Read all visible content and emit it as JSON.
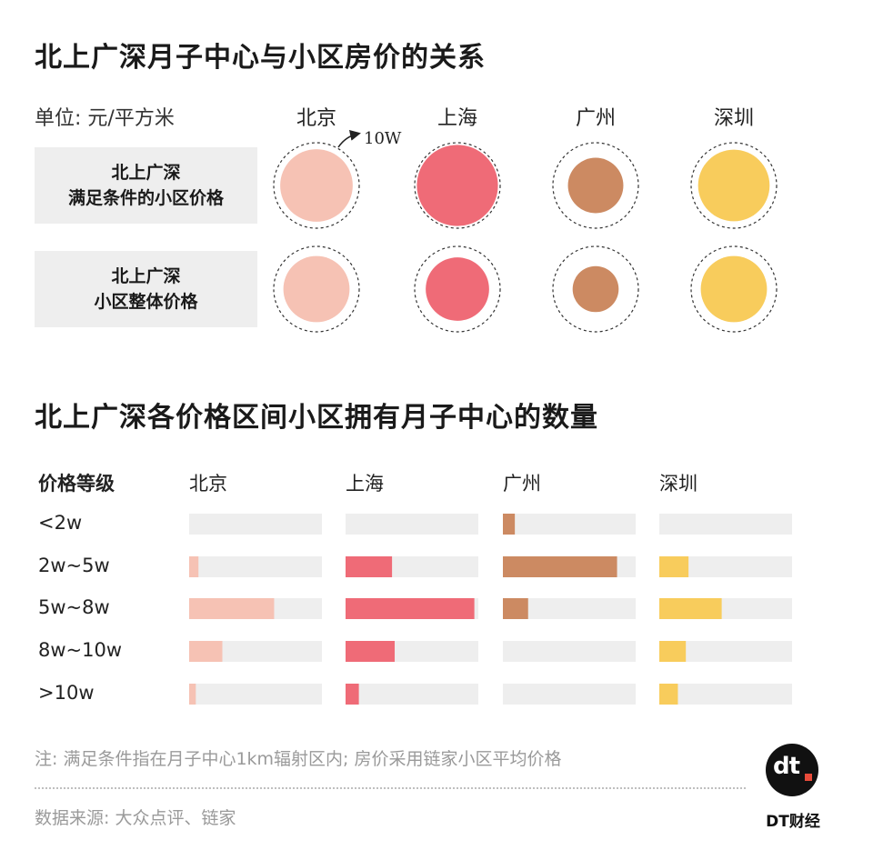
{
  "titles": {
    "top": "北上广深月子中心与小区房价的关系",
    "bottom": "北上广深各价格区间小区拥有月子中心的数量"
  },
  "unit_label": "单位: 元/平方米",
  "cities": [
    "北京",
    "上海",
    "广州",
    "深圳"
  ],
  "colors": {
    "北京": "#f6c2b4",
    "上海": "#ef6b77",
    "广州": "#cc8a62",
    "深圳": "#f8cc5c",
    "track": "#eeeeee",
    "dash": "#333333"
  },
  "bubble_reference_label": "10W",
  "bubble_rows": [
    {
      "line1": "北上广深",
      "line2": "满足条件的小区价格"
    },
    {
      "line1": "北上广深",
      "line2": "小区整体价格"
    }
  ],
  "bar_header": "价格等级",
  "price_levels": [
    "<2w",
    "2w~5w",
    "5w~8w",
    "8w~10w",
    ">10w"
  ],
  "note": "注: 满足条件指在月子中心1km辐射区内; 房价采用链家小区平均价格",
  "source": "数据来源: 大众点评、链家",
  "brand": {
    "logo": "dt",
    "name": "DT财经"
  },
  "chart_data": [
    {
      "type": "bubble",
      "reference_value": 100000,
      "reference_label": "10W",
      "categories": [
        "北京",
        "上海",
        "广州",
        "深圳"
      ],
      "series": [
        {
          "name": "北上广深满足条件的小区价格",
          "values": [
            72000,
            90000,
            42000,
            70000
          ]
        },
        {
          "name": "北上广深小区整体价格",
          "values": [
            60000,
            55000,
            29000,
            60000
          ]
        }
      ]
    },
    {
      "type": "bar",
      "orientation": "horizontal",
      "categories": [
        "<2w",
        "2w~5w",
        "5w~8w",
        "8w~10w",
        ">10w"
      ],
      "value_max": 100,
      "series": [
        {
          "name": "北京",
          "values": [
            0,
            7,
            64,
            25,
            5
          ]
        },
        {
          "name": "上海",
          "values": [
            0,
            35,
            97,
            37,
            10
          ]
        },
        {
          "name": "广州",
          "values": [
            9,
            86,
            19,
            0,
            0
          ]
        },
        {
          "name": "深圳",
          "values": [
            0,
            22,
            47,
            20,
            14
          ]
        }
      ]
    }
  ]
}
